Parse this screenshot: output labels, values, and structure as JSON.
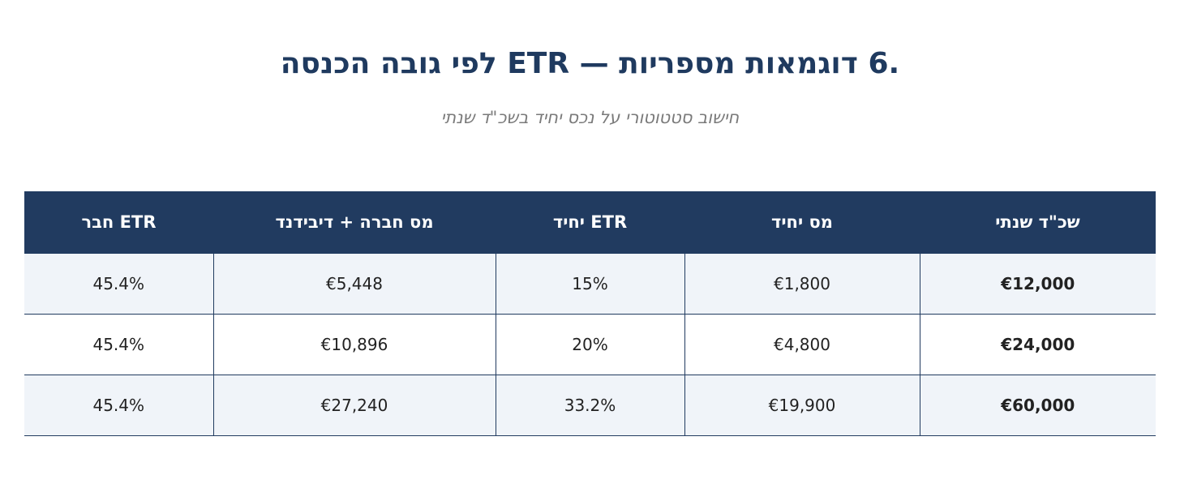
{
  "title": ".6 דוגמאות מספריות — ETR לפי גובה הכנסה",
  "subtitle": "חישוב סטטוטורי על נכס יחיד בשכ\"ד שנתי",
  "table": {
    "columns": [
      "חבר ETR",
      "מס חברה + דיבידנד",
      "יחיד ETR",
      "מס יחיד",
      "שכ\"ד שנתי"
    ],
    "rows": [
      [
        "45.4%",
        "€5,448",
        "15%",
        "€1,800",
        "€12,000"
      ],
      [
        "45.4%",
        "€10,896",
        "20%",
        "€4,800",
        "€24,000"
      ],
      [
        "45.4%",
        "€27,240",
        "33.2%",
        "€19,900",
        "€60,000"
      ]
    ]
  },
  "colors": {
    "header_bg": "#213b60",
    "title": "#1f3a5f",
    "row_alt": "#f0f4f9"
  }
}
